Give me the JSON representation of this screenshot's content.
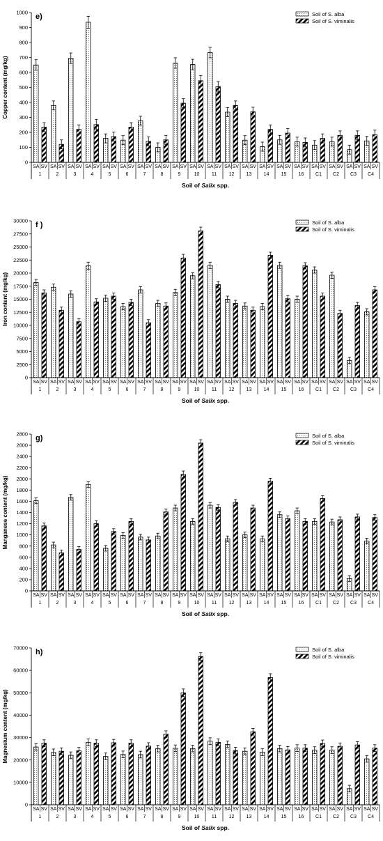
{
  "chart_data": [
    {
      "type": "bar",
      "panel_label": "e)",
      "ylabel": "Copper content (mg/kg)",
      "xlabel_prefix": "Soil of ",
      "xlabel_italic": "Salix",
      "xlabel_suffix": " spp.",
      "ylim": [
        0,
        1000
      ],
      "yticks": [
        0,
        100,
        200,
        300,
        400,
        500,
        600,
        700,
        800,
        900,
        1000
      ],
      "categories": [
        "1",
        "2",
        "3",
        "4",
        "5",
        "6",
        "7",
        "8",
        "9",
        "10",
        "11",
        "12",
        "13",
        "14",
        "15",
        "16",
        "C1",
        "C2",
        "C3",
        "C4"
      ],
      "sub_labels": [
        "SA",
        "SV"
      ],
      "series": [
        {
          "name": "Soil of S. alba",
          "pattern": "dots",
          "values": [
            650,
            380,
            695,
            935,
            160,
            148,
            278,
            100,
            663,
            653,
            733,
            335,
            148,
            105,
            150,
            138,
            115,
            138,
            85,
            143
          ],
          "errors": [
            35,
            30,
            35,
            40,
            30,
            30,
            30,
            30,
            35,
            35,
            35,
            30,
            30,
            30,
            30,
            30,
            30,
            30,
            30,
            30
          ]
        },
        {
          "name": "Soil of S. viminalis",
          "pattern": "hatch",
          "values": [
            235,
            120,
            220,
            252,
            172,
            235,
            140,
            150,
            395,
            545,
            505,
            380,
            338,
            220,
            195,
            133,
            160,
            180,
            180,
            185
          ],
          "errors": [
            30,
            30,
            30,
            35,
            30,
            30,
            30,
            30,
            30,
            35,
            35,
            30,
            30,
            30,
            30,
            30,
            30,
            30,
            30,
            30
          ]
        }
      ],
      "legend": [
        "Soil of S. alba",
        "Soil of S. viminalis"
      ]
    },
    {
      "type": "bar",
      "panel_label": "f )",
      "ylabel": "Iron content (mg/kg)",
      "xlabel_prefix": "Soil of ",
      "xlabel_italic": "Salix",
      "xlabel_suffix": " spp.",
      "ylim": [
        0,
        30000
      ],
      "yticks": [
        0,
        2500,
        5000,
        7500,
        10000,
        12500,
        15000,
        17500,
        20000,
        22500,
        25000,
        27500,
        30000
      ],
      "categories": [
        "1",
        "2",
        "3",
        "4",
        "5",
        "6",
        "7",
        "8",
        "9",
        "10",
        "11",
        "12",
        "13",
        "14",
        "15",
        "16",
        "C1",
        "C2",
        "C3",
        "C4"
      ],
      "sub_labels": [
        "SA",
        "SV"
      ],
      "series": [
        {
          "name": "Soil of S. alba",
          "pattern": "dots",
          "values": [
            18200,
            17300,
            16000,
            21400,
            15200,
            13600,
            16800,
            14200,
            16300,
            19500,
            21500,
            15000,
            13700,
            13600,
            21500,
            15000,
            20600,
            19600,
            3300,
            12600
          ],
          "errors": [
            600,
            600,
            600,
            700,
            600,
            600,
            600,
            600,
            600,
            600,
            600,
            600,
            600,
            600,
            600,
            600,
            600,
            600,
            600,
            600
          ]
        },
        {
          "name": "Soil of S. viminalis",
          "pattern": "hatch",
          "values": [
            16200,
            12900,
            10700,
            14500,
            15600,
            14400,
            10500,
            13700,
            22900,
            28100,
            17800,
            14200,
            12900,
            23400,
            15100,
            21400,
            15600,
            12300,
            13800,
            16800
          ],
          "errors": [
            600,
            600,
            600,
            600,
            600,
            600,
            600,
            600,
            700,
            700,
            600,
            600,
            600,
            600,
            600,
            600,
            600,
            600,
            600,
            600
          ]
        }
      ],
      "legend": [
        "Soil of S. alba",
        "Soil of S. viminalis"
      ]
    },
    {
      "type": "bar",
      "panel_label": "g)",
      "ylabel": "Manganese content (mg/kg)",
      "xlabel_prefix": "Soil of ",
      "xlabel_italic": "Salix",
      "xlabel_suffix": " spp.",
      "ylim": [
        0,
        2800
      ],
      "yticks": [
        0,
        200,
        400,
        600,
        800,
        1000,
        1200,
        1400,
        1600,
        1800,
        2000,
        2200,
        2400,
        2600,
        2800
      ],
      "categories": [
        "1",
        "2",
        "3",
        "4",
        "5",
        "6",
        "7",
        "8",
        "9",
        "10",
        "11",
        "12",
        "13",
        "14",
        "15",
        "16",
        "C1",
        "C2",
        "C3",
        "C4"
      ],
      "sub_labels": [
        "SA",
        "SV"
      ],
      "series": [
        {
          "name": "Soil of S. alba",
          "pattern": "dots",
          "values": [
            1610,
            820,
            1670,
            1900,
            760,
            990,
            960,
            980,
            1480,
            1240,
            1530,
            930,
            1000,
            930,
            1360,
            1430,
            1240,
            1230,
            220,
            890
          ],
          "errors": [
            50,
            50,
            50,
            50,
            50,
            50,
            50,
            50,
            50,
            50,
            50,
            50,
            50,
            50,
            50,
            50,
            50,
            50,
            50,
            50
          ]
        },
        {
          "name": "Soil of S. viminalis",
          "pattern": "hatch",
          "values": [
            1160,
            680,
            740,
            1200,
            1060,
            1240,
            910,
            1410,
            2080,
            2640,
            1490,
            1580,
            1480,
            1960,
            1290,
            1240,
            1650,
            1270,
            1320,
            1310
          ],
          "errors": [
            50,
            50,
            50,
            50,
            50,
            50,
            50,
            50,
            60,
            60,
            50,
            50,
            50,
            50,
            50,
            50,
            50,
            50,
            50,
            50
          ]
        }
      ],
      "legend": [
        "Soil of S. alba",
        "Soil of S. viminalis"
      ]
    },
    {
      "type": "bar",
      "panel_label": "h)",
      "ylabel": "Magnesium content (mg/kg)",
      "xlabel_prefix": "Soil of ",
      "xlabel_italic": "Salix",
      "xlabel_suffix": " spp.",
      "ylim": [
        0,
        70000
      ],
      "yticks": [
        0,
        10000,
        20000,
        30000,
        40000,
        50000,
        60000,
        70000
      ],
      "categories": [
        "1",
        "2",
        "3",
        "4",
        "5",
        "6",
        "7",
        "8",
        "9",
        "10",
        "11",
        "12",
        "13",
        "14",
        "15",
        "16",
        "C1",
        "C2",
        "C3",
        "C4"
      ],
      "sub_labels": [
        "SA",
        "SV"
      ],
      "series": [
        {
          "name": "Soil of S. alba",
          "pattern": "dots",
          "values": [
            25800,
            23400,
            22100,
            27900,
            21600,
            22500,
            22400,
            25100,
            25200,
            25100,
            28400,
            26900,
            23900,
            23500,
            25100,
            25300,
            24400,
            24400,
            7200,
            20500
          ],
          "errors": [
            1500,
            1500,
            1500,
            1500,
            1500,
            1500,
            1500,
            1500,
            1500,
            1500,
            1500,
            1500,
            1500,
            1500,
            1500,
            1500,
            1500,
            1500,
            1500,
            1500
          ]
        },
        {
          "name": "Soil of S. viminalis",
          "pattern": "hatch",
          "values": [
            27500,
            23900,
            24100,
            27500,
            27700,
            27500,
            26200,
            31500,
            50000,
            66200,
            27900,
            24200,
            32600,
            56800,
            24500,
            25300,
            27400,
            26100,
            26700,
            25300
          ],
          "errors": [
            1500,
            1500,
            1500,
            1500,
            1500,
            1500,
            1500,
            1500,
            1700,
            1700,
            1500,
            1500,
            1500,
            1700,
            1500,
            1500,
            1500,
            1500,
            1500,
            1500
          ]
        }
      ],
      "legend": [
        "Soil of S. alba",
        "Soil of S. viminalis"
      ]
    }
  ]
}
